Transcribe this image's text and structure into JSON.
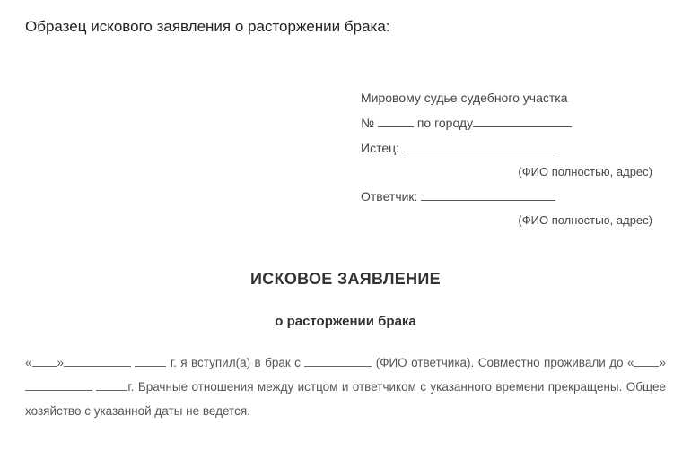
{
  "page": {
    "caption": "Образец искового заявления о расторжении брака:"
  },
  "header": {
    "line1": "Мировому судье судебного участка",
    "line2_prefix": "№",
    "line2_mid": "по городу",
    "plaintiff_label": "Истец:",
    "hint1": "(ФИО полностью, адрес)",
    "defendant_label": "Ответчик:",
    "hint2": "(ФИО полностью, адрес)"
  },
  "title": {
    "main": "ИСКОВОЕ ЗАЯВЛЕНИЕ",
    "sub": "о расторжении брака"
  },
  "body": {
    "part1a": "«",
    "part1b": "»",
    "part2": " г. я вступил(а) в брак с ",
    "part3": " (ФИО ответчика). Совместно проживали до «",
    "part4": "»",
    "part5": "г. Брачные отношения между истцом и ответчиком с указанного времени прекращены. Общее хозяйство с указанной даты не ведется."
  }
}
